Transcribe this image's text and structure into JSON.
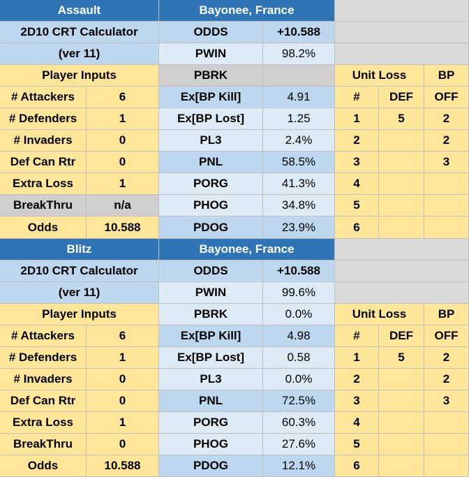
{
  "blocks": [
    {
      "title": "Assault",
      "location": "Bayonee, France",
      "calculator": "2D10 CRT Calculator",
      "version": "(ver 11)",
      "inputs_header": "Player Inputs",
      "inputs": [
        {
          "label": "# Attackers",
          "value": "6"
        },
        {
          "label": "# Defenders",
          "value": "1"
        },
        {
          "label": "# Invaders",
          "value": "0"
        },
        {
          "label": "Def Can Rtr",
          "value": "0"
        },
        {
          "label": "Extra Loss",
          "value": "1"
        },
        {
          "label": "BreakThru",
          "value": "n/a",
          "disabled": true
        },
        {
          "label": "Odds",
          "value": "10.588"
        }
      ],
      "stats": [
        {
          "label": "ODDS",
          "value": "+10.588"
        },
        {
          "label": "PWIN",
          "value": "98.2%"
        },
        {
          "label": "PBRK",
          "disabled": true
        },
        {
          "label": "Ex[BP Kill]",
          "value": "4.91"
        },
        {
          "label": "Ex[BP Lost]",
          "value": "1.25"
        },
        {
          "label": "PL3",
          "value": "2.4%"
        },
        {
          "label": "PNL",
          "value": "58.5%"
        },
        {
          "label": "PORG",
          "value": "41.3%"
        },
        {
          "label": "PHOG",
          "value": "34.8%"
        },
        {
          "label": "PDOG",
          "value": "23.9%"
        }
      ],
      "unit_loss_header": "Unit Loss",
      "bp_header": "BP",
      "loss_columns": [
        "#",
        "DEF",
        "OFF"
      ],
      "loss_rows": [
        {
          "n": "1",
          "def": "5",
          "off": "2"
        },
        {
          "n": "2",
          "off": "2"
        },
        {
          "n": "3",
          "off": "3"
        },
        {
          "n": "4"
        },
        {
          "n": "5"
        },
        {
          "n": "6"
        }
      ]
    },
    {
      "title": "Blitz",
      "location": "Bayonee, France",
      "calculator": "2D10 CRT Calculator",
      "version": "(ver 11)",
      "inputs_header": "Player Inputs",
      "inputs": [
        {
          "label": "# Attackers",
          "value": "6"
        },
        {
          "label": "# Defenders",
          "value": "1"
        },
        {
          "label": "# Invaders",
          "value": "0"
        },
        {
          "label": "Def Can Rtr",
          "value": "0"
        },
        {
          "label": "Extra Loss",
          "value": "1"
        },
        {
          "label": "BreakThru",
          "value": "0"
        },
        {
          "label": "Odds",
          "value": "10.588"
        }
      ],
      "stats": [
        {
          "label": "ODDS",
          "value": "+10.588"
        },
        {
          "label": "PWIN",
          "value": "99.6%"
        },
        {
          "label": "PBRK",
          "value": "0.0%"
        },
        {
          "label": "Ex[BP Kill]",
          "value": "4.98"
        },
        {
          "label": "Ex[BP Lost]",
          "value": "0.58"
        },
        {
          "label": "PL3",
          "value": "0.0%"
        },
        {
          "label": "PNL",
          "value": "72.5%"
        },
        {
          "label": "PORG",
          "value": "60.3%"
        },
        {
          "label": "PHOG",
          "value": "27.6%"
        },
        {
          "label": "PDOG",
          "value": "12.1%"
        }
      ],
      "unit_loss_header": "Unit Loss",
      "bp_header": "BP",
      "loss_columns": [
        "#",
        "DEF",
        "OFF"
      ],
      "loss_rows": [
        {
          "n": "1",
          "def": "5",
          "off": "2"
        },
        {
          "n": "2",
          "off": "2"
        },
        {
          "n": "3",
          "off": "3"
        },
        {
          "n": "4"
        },
        {
          "n": "5"
        },
        {
          "n": "6"
        }
      ]
    }
  ]
}
